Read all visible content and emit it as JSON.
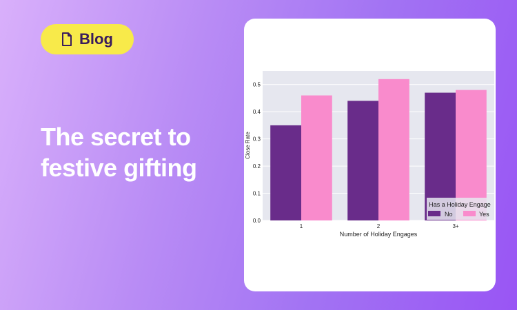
{
  "badge": {
    "label": "Blog",
    "icon": "document-icon"
  },
  "headline": "The secret to festive gifting",
  "colors": {
    "badge_bg": "#f8ea4a",
    "series_no": "#692c8a",
    "series_yes": "#f98bcc",
    "plot_bg": "#e6e7ef"
  },
  "chart_data": {
    "type": "bar",
    "categories": [
      "1",
      "2",
      "3+"
    ],
    "series": [
      {
        "name": "No",
        "values": [
          0.35,
          0.44,
          0.47
        ]
      },
      {
        "name": "Yes",
        "values": [
          0.46,
          0.52,
          0.48
        ]
      }
    ],
    "xlabel": "Number of Holiday Engages",
    "ylabel": "Close Rate",
    "ylim": [
      0,
      0.55
    ],
    "yticks": [
      "0.0",
      "0.1",
      "0.2",
      "0.3",
      "0.4",
      "0.5"
    ],
    "grid": true,
    "legend_title": "Has a Holiday Engage",
    "legend_position": "lower-right"
  }
}
